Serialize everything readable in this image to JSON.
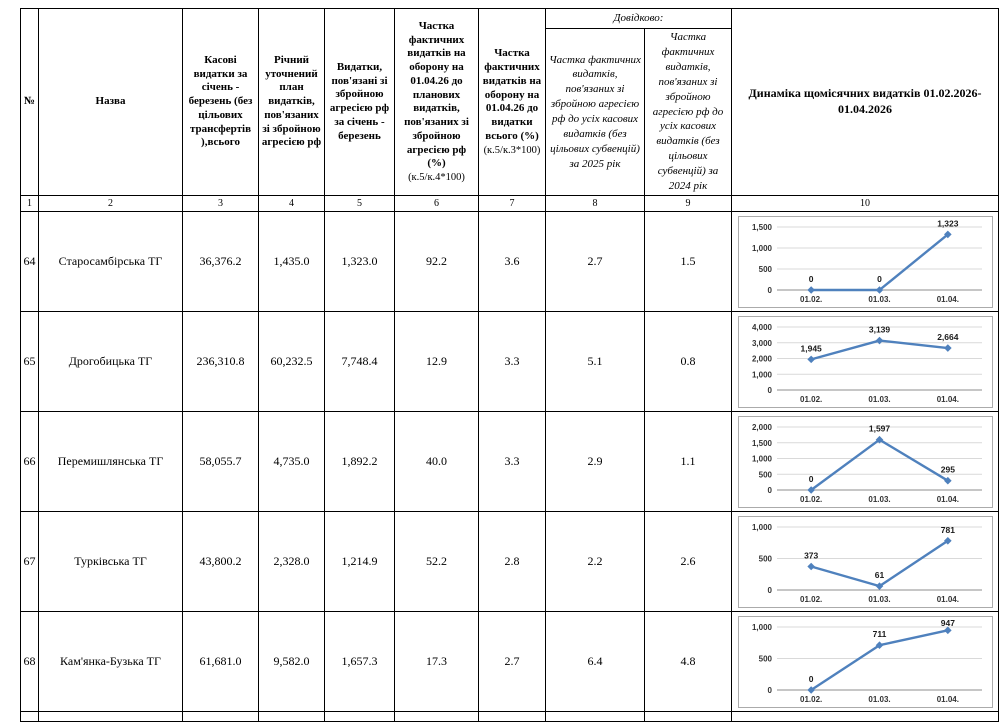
{
  "colors": {
    "line": "#4F81BD",
    "grid": "#D9D9D9",
    "axis": "#8C8C8C",
    "chart_border": "#ABABAB",
    "table_border": "#000000"
  },
  "table": {
    "headers": {
      "col1": "№",
      "col2": "Назва",
      "col3": "Касові видатки за січень - березень (без цільових трансфертів ),всього",
      "col4": "Річний уточнений план видатків, пов'язаних зі збройною агресією рф",
      "col5": "Видатки, пов'язані зі збройною агресією рф за січень - березень",
      "col6_main": "Частка фактичних видатків на оборону на 01.04.26 до планових видатків, пов'язаних зі збройною агресією рф (%)",
      "col6_formula": "(к.5/к.4*100)",
      "col7_main": "Частка фактичних видатків на оборону на 01.04.26 до видатки всього (%)",
      "col7_formula": "(к.5/к.3*100)",
      "ref_group": "Довідково:",
      "col8": "Частка фактичних видатків, пов'язаних зі збройною агресією рф до усіх касових видатків (без цільових субвенцій) за 2025 рік",
      "col9": "Частка фактичних видатків, пов'язаних зі збройною агресією рф до усіх касових видатків (без цільових субвенцій) за 2024 рік",
      "col10": "Динаміка щомісячних видатків 01.02.2026-01.04.2026"
    },
    "numbering": [
      "1",
      "2",
      "3",
      "4",
      "5",
      "6",
      "7",
      "8",
      "9",
      "10"
    ],
    "rows": [
      {
        "num": "64",
        "name": "Старосамбірська ТГ",
        "cash": "36,376.2",
        "plan": "1,435.0",
        "defense": "1,323.0",
        "share_plan": "92.2",
        "share_total": "3.6",
        "share_2025": "2.7",
        "share_2024": "1.5"
      },
      {
        "num": "65",
        "name": "Дрогобицька ТГ",
        "cash": "236,310.8",
        "plan": "60,232.5",
        "defense": "7,748.4",
        "share_plan": "12.9",
        "share_total": "3.3",
        "share_2025": "5.1",
        "share_2024": "0.8"
      },
      {
        "num": "66",
        "name": "Перемишлянська ТГ",
        "cash": "58,055.7",
        "plan": "4,735.0",
        "defense": "1,892.2",
        "share_plan": "40.0",
        "share_total": "3.3",
        "share_2025": "2.9",
        "share_2024": "1.1"
      },
      {
        "num": "67",
        "name": "Турківська ТГ",
        "cash": "43,800.2",
        "plan": "2,328.0",
        "defense": "1,214.9",
        "share_plan": "52.2",
        "share_total": "2.8",
        "share_2025": "2.2",
        "share_2024": "2.6"
      },
      {
        "num": "68",
        "name": "Кам'янка-Бузька ТГ",
        "cash": "61,681.0",
        "plan": "9,582.0",
        "defense": "1,657.3",
        "share_plan": "17.3",
        "share_total": "2.7",
        "share_2025": "6.4",
        "share_2024": "4.8"
      }
    ]
  },
  "chart_data": [
    {
      "type": "line",
      "title": "Динаміка щомісячних видатків, рядок 64",
      "x": [
        "01.02.",
        "01.03.",
        "01.04."
      ],
      "values": [
        0,
        0,
        1323
      ],
      "labels": [
        "0",
        "0",
        "1,323"
      ],
      "ylim": [
        0,
        1500
      ],
      "yticks": [
        0,
        500,
        1000,
        1500
      ],
      "ytick_labels": [
        "0",
        "500",
        "1,000",
        "1,500"
      ],
      "grid": true,
      "legend": false
    },
    {
      "type": "line",
      "title": "Динаміка щомісячних видатків, рядок 65",
      "x": [
        "01.02.",
        "01.03.",
        "01.04."
      ],
      "values": [
        1945,
        3139,
        2664
      ],
      "labels": [
        "1,945",
        "3,139",
        "2,664"
      ],
      "ylim": [
        0,
        4000
      ],
      "yticks": [
        0,
        1000,
        2000,
        3000,
        4000
      ],
      "ytick_labels": [
        "0",
        "1,000",
        "2,000",
        "3,000",
        "4,000"
      ],
      "grid": true,
      "legend": false
    },
    {
      "type": "line",
      "title": "Динаміка щомісячних видатків, рядок 66",
      "x": [
        "01.02.",
        "01.03.",
        "01.04."
      ],
      "values": [
        0,
        1597,
        295
      ],
      "labels": [
        "0",
        "1,597",
        "295"
      ],
      "ylim": [
        0,
        2000
      ],
      "yticks": [
        0,
        500,
        1000,
        1500,
        2000
      ],
      "ytick_labels": [
        "0",
        "500",
        "1,000",
        "1,500",
        "2,000"
      ],
      "grid": true,
      "legend": false
    },
    {
      "type": "line",
      "title": "Динаміка щомісячних видатків, рядок 67",
      "x": [
        "01.02.",
        "01.03.",
        "01.04."
      ],
      "values": [
        373,
        61,
        781
      ],
      "labels": [
        "373",
        "61",
        "781"
      ],
      "ylim": [
        0,
        1000
      ],
      "yticks": [
        0,
        500,
        1000
      ],
      "ytick_labels": [
        "0",
        "500",
        "1,000"
      ],
      "grid": true,
      "legend": false
    },
    {
      "type": "line",
      "title": "Динаміка щомісячних видатків, рядок 68",
      "x": [
        "01.02.",
        "01.03.",
        "01.04."
      ],
      "values": [
        0,
        711,
        947
      ],
      "labels": [
        "0",
        "711",
        "947"
      ],
      "ylim": [
        0,
        1000
      ],
      "yticks": [
        0,
        500,
        1000
      ],
      "ytick_labels": [
        "0",
        "500",
        "1,000"
      ],
      "grid": true,
      "legend": false
    }
  ]
}
